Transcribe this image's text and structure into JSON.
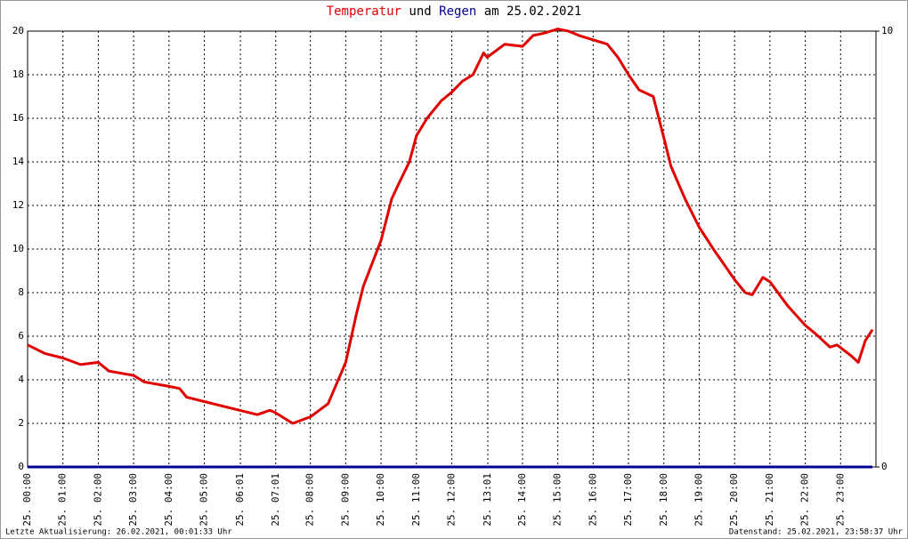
{
  "chart_data": {
    "type": "line",
    "title": [
      {
        "text": "Temperatur",
        "color": "#e00000"
      },
      {
        "text": "und",
        "color": "#000000"
      },
      {
        "text": "Regen",
        "color": "#000090"
      },
      {
        "text": "am 25.02.2021",
        "color": "#000000"
      }
    ],
    "footer_left": "Letzte Aktualisierung: 26.02.2021, 00:01:33 Uhr",
    "footer_right": "Datenstand: 25.02.2021, 23:58:37 Uhr",
    "x": [
      0,
      0.5,
      1,
      1.5,
      2,
      2.3,
      3,
      3.3,
      4,
      4.3,
      4.5,
      5,
      5.5,
      6,
      6.5,
      6.85,
      7,
      7.5,
      8,
      8.5,
      9,
      9.3,
      9.5,
      10,
      10.3,
      10.5,
      10.8,
      11,
      11.3,
      11.7,
      12,
      12.3,
      12.6,
      12.9,
      13,
      13.5,
      14,
      14.3,
      14.6,
      15,
      15.3,
      15.6,
      16,
      16.4,
      16.7,
      17,
      17.3,
      17.7,
      18,
      18.2,
      18.6,
      19,
      19.4,
      19.7,
      20,
      20.3,
      20.5,
      20.8,
      21,
      21.5,
      22,
      22.3,
      22.7,
      22.9,
      23.3,
      23.5,
      23.7,
      23.9
    ],
    "series": [
      {
        "name": "Temperatur",
        "color": "#e00000",
        "values": [
          5.6,
          5.2,
          5.0,
          4.7,
          4.8,
          4.4,
          4.2,
          3.9,
          3.7,
          3.6,
          3.2,
          3.0,
          2.8,
          2.6,
          2.4,
          2.6,
          2.5,
          2.0,
          2.3,
          2.9,
          4.8,
          7.0,
          8.3,
          10.4,
          12.3,
          13.0,
          14.0,
          15.2,
          16.0,
          16.8,
          17.2,
          17.7,
          18.0,
          19.0,
          18.8,
          19.4,
          19.3,
          19.8,
          19.9,
          20.1,
          20.0,
          19.8,
          19.6,
          19.4,
          18.8,
          18.0,
          17.3,
          17.0,
          15.1,
          13.8,
          12.3,
          11.0,
          10.0,
          9.3,
          8.6,
          8.0,
          7.9,
          8.7,
          8.5,
          7.4,
          6.5,
          6.1,
          5.5,
          5.6,
          5.1,
          4.8,
          5.8,
          6.3
        ]
      },
      {
        "name": "Regen",
        "color": "#000090",
        "axis": "y2",
        "values": [
          0,
          0,
          0,
          0,
          0,
          0,
          0,
          0,
          0,
          0,
          0,
          0,
          0,
          0,
          0,
          0,
          0,
          0,
          0,
          0,
          0,
          0,
          0,
          0,
          0,
          0,
          0,
          0,
          0,
          0,
          0,
          0,
          0,
          0,
          0,
          0,
          0,
          0,
          0,
          0,
          0,
          0,
          0,
          0,
          0,
          0,
          0,
          0,
          0,
          0,
          0,
          0,
          0,
          0,
          0,
          0,
          0,
          0,
          0,
          0,
          0,
          0,
          0,
          0,
          0,
          0,
          0,
          0
        ]
      }
    ],
    "xlim": [
      0,
      24
    ],
    "xticks": [
      {
        "value": 0,
        "label": "25. 00:00"
      },
      {
        "value": 1,
        "label": "25. 01:00"
      },
      {
        "value": 2,
        "label": "25. 02:00"
      },
      {
        "value": 3,
        "label": "25. 03:00"
      },
      {
        "value": 4,
        "label": "25. 04:00"
      },
      {
        "value": 5,
        "label": "25. 05:00"
      },
      {
        "value": 6.02,
        "label": "25. 06:01"
      },
      {
        "value": 7.02,
        "label": "25. 07:01"
      },
      {
        "value": 8,
        "label": "25. 08:00"
      },
      {
        "value": 9,
        "label": "25. 09:00"
      },
      {
        "value": 10,
        "label": "25. 10:00"
      },
      {
        "value": 11,
        "label": "25. 11:00"
      },
      {
        "value": 12,
        "label": "25. 12:00"
      },
      {
        "value": 13.02,
        "label": "25. 13:01"
      },
      {
        "value": 14,
        "label": "25. 14:00"
      },
      {
        "value": 15,
        "label": "25. 15:00"
      },
      {
        "value": 16,
        "label": "25. 16:00"
      },
      {
        "value": 17,
        "label": "25. 17:00"
      },
      {
        "value": 18,
        "label": "25. 18:00"
      },
      {
        "value": 19,
        "label": "25. 19:00"
      },
      {
        "value": 20,
        "label": "25. 20:00"
      },
      {
        "value": 21,
        "label": "25. 21:00"
      },
      {
        "value": 22,
        "label": "25. 22:00"
      },
      {
        "value": 23,
        "label": "25. 23:00"
      }
    ],
    "ylim": [
      0,
      20
    ],
    "yticks": [
      0,
      2,
      4,
      6,
      8,
      10,
      12,
      14,
      16,
      18,
      20
    ],
    "y2lim": [
      0,
      10
    ],
    "y2ticks": [
      0,
      10
    ],
    "grid": true
  }
}
